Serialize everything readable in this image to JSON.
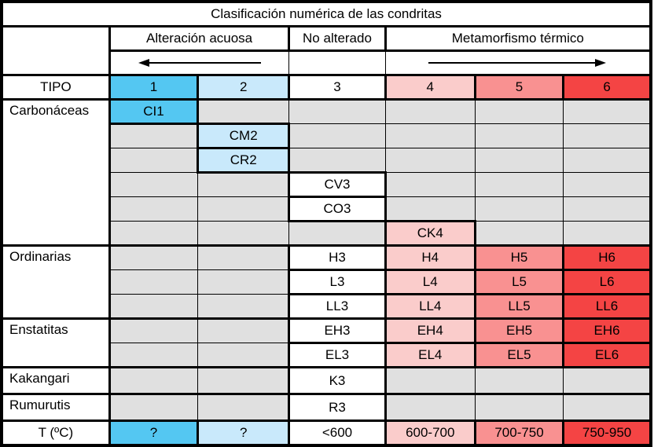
{
  "palette": {
    "type1": "#54C7F2",
    "type2": "#C9E9FB",
    "type3": "#FFFFFF",
    "type4": "#FACCCB",
    "type5": "#F99191",
    "type6": "#F44444",
    "empty": "#E0E0E0",
    "border": "#000000"
  },
  "header": {
    "title": "Clasificación numérica de las condritas",
    "groups": [
      {
        "label": "Alteración acuosa",
        "colspan": 2,
        "arrow": "left"
      },
      {
        "label": "No alterado",
        "colspan": 1,
        "arrow": "none"
      },
      {
        "label": "Metamorfismo térmico",
        "colspan": 3,
        "arrow": "right"
      }
    ],
    "type_row_label": "TIPO",
    "types": [
      {
        "label": "1",
        "color": "type1"
      },
      {
        "label": "2",
        "color": "type2"
      },
      {
        "label": "3",
        "color": "type3"
      },
      {
        "label": "4",
        "color": "type4"
      },
      {
        "label": "5",
        "color": "type5"
      },
      {
        "label": "6",
        "color": "type6"
      }
    ]
  },
  "body_rows": [
    {
      "group": {
        "label": "Carbonáceas",
        "rowspan": 6
      },
      "section_start": true,
      "cells": [
        {
          "col": 1,
          "text": "CI1",
          "color": "type1"
        }
      ]
    },
    {
      "cells": [
        {
          "col": 2,
          "text": "CM2",
          "color": "type2"
        }
      ]
    },
    {
      "cells": [
        {
          "col": 2,
          "text": "CR2",
          "color": "type2"
        }
      ]
    },
    {
      "cells": [
        {
          "col": 3,
          "text": "CV3",
          "color": "type3"
        }
      ]
    },
    {
      "cells": [
        {
          "col": 3,
          "text": "CO3",
          "color": "type3"
        }
      ]
    },
    {
      "cells": [
        {
          "col": 4,
          "text": "CK4",
          "color": "type4"
        }
      ]
    },
    {
      "group": {
        "label": "Ordinarias",
        "rowspan": 3
      },
      "section_start": true,
      "cells": [
        {
          "col": 3,
          "text": "H3",
          "color": "type3"
        },
        {
          "col": 4,
          "text": "H4",
          "color": "type4"
        },
        {
          "col": 5,
          "text": "H5",
          "color": "type5"
        },
        {
          "col": 6,
          "text": "H6",
          "color": "type6"
        }
      ]
    },
    {
      "cells": [
        {
          "col": 3,
          "text": "L3",
          "color": "type3"
        },
        {
          "col": 4,
          "text": "L4",
          "color": "type4"
        },
        {
          "col": 5,
          "text": "L5",
          "color": "type5"
        },
        {
          "col": 6,
          "text": "L6",
          "color": "type6"
        }
      ]
    },
    {
      "cells": [
        {
          "col": 3,
          "text": "LL3",
          "color": "type3"
        },
        {
          "col": 4,
          "text": "LL4",
          "color": "type4"
        },
        {
          "col": 5,
          "text": "LL5",
          "color": "type5"
        },
        {
          "col": 6,
          "text": "LL6",
          "color": "type6"
        }
      ]
    },
    {
      "group": {
        "label": "Enstatitas",
        "rowspan": 2
      },
      "section_start": true,
      "cells": [
        {
          "col": 3,
          "text": "EH3",
          "color": "type3"
        },
        {
          "col": 4,
          "text": "EH4",
          "color": "type4"
        },
        {
          "col": 5,
          "text": "EH5",
          "color": "type5"
        },
        {
          "col": 6,
          "text": "EH6",
          "color": "type6"
        }
      ]
    },
    {
      "cells": [
        {
          "col": 3,
          "text": "EL3",
          "color": "type3"
        },
        {
          "col": 4,
          "text": "EL4",
          "color": "type4"
        },
        {
          "col": 5,
          "text": "EL5",
          "color": "type5"
        },
        {
          "col": 6,
          "text": "EL6",
          "color": "type6"
        }
      ]
    },
    {
      "group": {
        "label": "Kakangari",
        "rowspan": 1
      },
      "section_start": true,
      "cells": [
        {
          "col": 3,
          "text": "K3",
          "color": "type3"
        }
      ]
    },
    {
      "group": {
        "label": "Rumurutis",
        "rowspan": 1
      },
      "section_start": true,
      "cells": [
        {
          "col": 3,
          "text": "R3",
          "color": "type3"
        }
      ]
    }
  ],
  "temperature_row": {
    "label": "T (ºC)",
    "cells": [
      {
        "text": "?",
        "color": "type1"
      },
      {
        "text": "?",
        "color": "type2"
      },
      {
        "text": "<600",
        "color": "type3"
      },
      {
        "text": "600-700",
        "color": "type4"
      },
      {
        "text": "700-750",
        "color": "type5"
      },
      {
        "text": "750-950",
        "color": "type6"
      }
    ]
  }
}
